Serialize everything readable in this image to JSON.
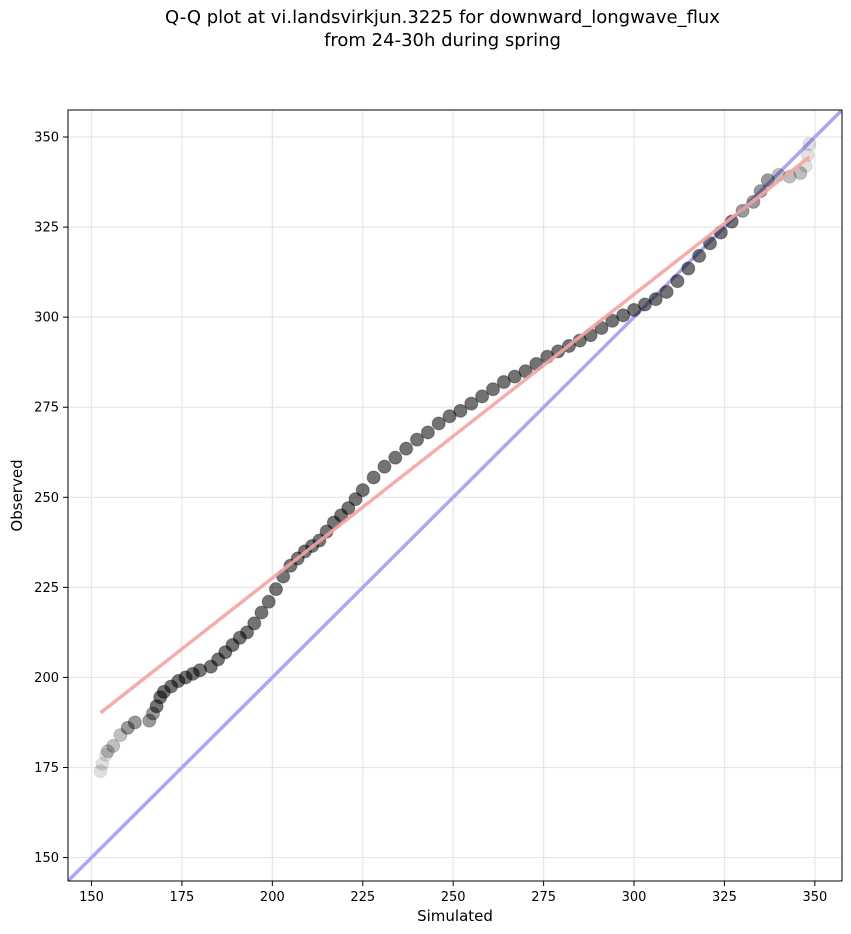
{
  "chart_data": {
    "type": "scatter",
    "title_line1": "Q-Q plot at vi.landsvirkjun.3225 for downward_longwave_flux",
    "title_line2": "from 24-30h during spring",
    "xlabel": "Simulated",
    "ylabel": "Observed",
    "xlim": [
      143.5,
      357.5
    ],
    "ylim": [
      143.5,
      357.5
    ],
    "xticks": [
      150,
      175,
      200,
      225,
      250,
      275,
      300,
      325,
      350
    ],
    "yticks": [
      150,
      175,
      200,
      225,
      250,
      275,
      300,
      325,
      350
    ],
    "grid": true,
    "quantile_points_x": [
      152.5,
      153.0,
      154.0,
      154.5,
      156.0,
      158.0,
      160.0,
      162.0,
      166.0,
      167.0,
      168.0,
      169.0,
      170.0,
      172.0,
      174.0,
      176.0,
      178.0,
      180.0,
      183.0,
      185.0,
      187.0,
      189.0,
      191.0,
      193.0,
      195.0,
      197.0,
      199.0,
      201.0,
      203.0,
      205.0,
      207.0,
      209.0,
      211.0,
      213.0,
      215.0,
      217.0,
      219.0,
      221.0,
      223.0,
      225.0,
      228.0,
      231.0,
      234.0,
      237.0,
      240.0,
      243.0,
      246.0,
      249.0,
      252.0,
      255.0,
      258.0,
      261.0,
      264.0,
      267.0,
      270.0,
      273.0,
      276.0,
      279.0,
      282.0,
      285.0,
      288.0,
      291.0,
      294.0,
      297.0,
      300.0,
      303.0,
      306.0,
      309.0,
      312.0,
      315.0,
      318.0,
      321.0,
      324.0,
      327.0,
      330.0,
      333.0,
      335.0,
      337.0,
      340.0,
      343.0,
      346.0,
      347.5,
      348.0,
      348.5
    ],
    "quantile_points_y": [
      174.0,
      176.0,
      178.5,
      179.5,
      181.0,
      184.0,
      186.0,
      187.5,
      188.0,
      190.0,
      192.0,
      194.5,
      196.0,
      197.5,
      199.0,
      200.0,
      201.0,
      202.0,
      203.0,
      205.0,
      207.0,
      209.0,
      211.0,
      212.5,
      215.0,
      218.0,
      221.0,
      224.5,
      228.0,
      231.0,
      233.0,
      235.0,
      236.5,
      238.0,
      240.5,
      243.0,
      245.0,
      247.0,
      249.5,
      252.0,
      255.5,
      258.5,
      261.0,
      263.5,
      266.0,
      268.0,
      270.5,
      272.5,
      274.0,
      276.0,
      278.0,
      280.0,
      282.0,
      283.5,
      285.0,
      287.0,
      289.0,
      290.5,
      292.0,
      293.5,
      295.0,
      297.0,
      299.0,
      300.5,
      302.0,
      303.5,
      305.0,
      307.0,
      310.0,
      313.5,
      317.0,
      320.5,
      323.5,
      326.5,
      329.5,
      332.0,
      335.0,
      338.0,
      339.5,
      339.0,
      340.0,
      342.0,
      345.0,
      348.0
    ],
    "regression_line": {
      "x": [
        152.5,
        348.5
      ],
      "y": [
        190.2,
        344.5
      ],
      "color": "#f4a3a3"
    },
    "identity_line": {
      "x": [
        143.5,
        357.5
      ],
      "y": [
        143.5,
        357.5
      ],
      "color": "#a8a8f4"
    },
    "point_color": "#000000"
  }
}
